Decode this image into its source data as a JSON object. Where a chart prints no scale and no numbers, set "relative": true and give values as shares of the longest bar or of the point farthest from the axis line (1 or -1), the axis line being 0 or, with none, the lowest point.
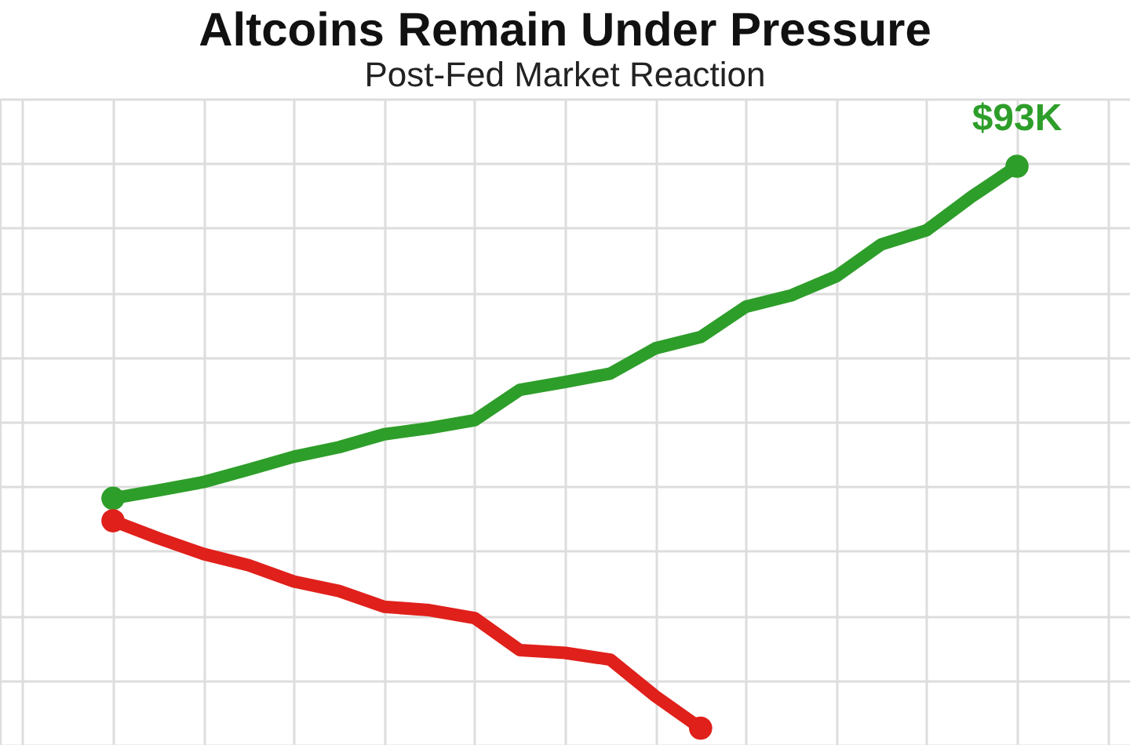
{
  "chart_data": {
    "type": "line",
    "title": "Altcoins Remain Under Pressure",
    "subtitle": "Post-Fed Market Reaction",
    "relative": true,
    "grid": true,
    "legend": false,
    "line_style": "solid",
    "categories": [
      null,
      null,
      null,
      null,
      null,
      null,
      null,
      null,
      null,
      null,
      null,
      null,
      null,
      null,
      null,
      null,
      null,
      null,
      null,
      null,
      null
    ],
    "series": [
      {
        "color": "#2e9e2a",
        "values": [
          0.409,
          0.423,
          0.438,
          0.46,
          0.483,
          0.5,
          0.523,
          0.534,
          0.548,
          0.602,
          0.616,
          0.631,
          0.676,
          0.696,
          0.75,
          0.77,
          0.804,
          0.861,
          0.886,
          0.946,
          1.0
        ]
      },
      {
        "color": "#e0201b",
        "values": [
          0.369,
          0.338,
          0.31,
          0.29,
          0.261,
          0.244,
          0.216,
          0.21,
          0.196,
          0.139,
          0.134,
          0.122,
          0.057,
          0.0,
          null,
          null,
          null,
          null,
          null,
          null,
          null
        ]
      }
    ],
    "annotations": [
      {
        "text": "$93K",
        "y": 1.0
      }
    ]
  }
}
